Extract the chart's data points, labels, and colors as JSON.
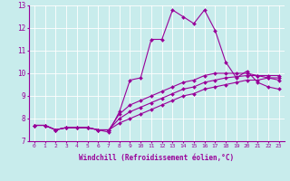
{
  "xlabel": "Windchill (Refroidissement éolien,°C)",
  "background_color": "#c8ecec",
  "line_color": "#990099",
  "xlim": [
    -0.5,
    23.5
  ],
  "ylim": [
    7,
    13
  ],
  "xticks": [
    0,
    1,
    2,
    3,
    4,
    5,
    6,
    7,
    8,
    9,
    10,
    11,
    12,
    13,
    14,
    15,
    16,
    17,
    18,
    19,
    20,
    21,
    22,
    23
  ],
  "yticks": [
    7,
    8,
    9,
    10,
    11,
    12,
    13
  ],
  "series1": [
    7.7,
    7.7,
    7.5,
    7.6,
    7.6,
    7.6,
    7.5,
    7.4,
    8.3,
    9.7,
    9.8,
    11.5,
    11.5,
    12.8,
    12.5,
    12.2,
    12.8,
    11.9,
    10.5,
    9.8,
    10.1,
    9.6,
    9.4,
    9.3
  ],
  "series2": [
    7.7,
    7.7,
    7.5,
    7.6,
    7.6,
    7.6,
    7.5,
    7.5,
    7.8,
    8.0,
    8.2,
    8.4,
    8.6,
    8.8,
    9.0,
    9.1,
    9.3,
    9.4,
    9.5,
    9.6,
    9.7,
    9.7,
    9.8,
    9.8
  ],
  "series3": [
    7.7,
    7.7,
    7.5,
    7.6,
    7.6,
    7.6,
    7.5,
    7.5,
    8.0,
    8.3,
    8.5,
    8.7,
    8.9,
    9.1,
    9.3,
    9.4,
    9.6,
    9.7,
    9.8,
    9.85,
    9.9,
    9.9,
    9.9,
    9.9
  ],
  "series4": [
    7.7,
    7.7,
    7.5,
    7.6,
    7.6,
    7.6,
    7.5,
    7.5,
    8.2,
    8.6,
    8.8,
    9.0,
    9.2,
    9.4,
    9.6,
    9.7,
    9.9,
    10.0,
    10.0,
    10.0,
    10.0,
    9.9,
    9.8,
    9.7
  ]
}
